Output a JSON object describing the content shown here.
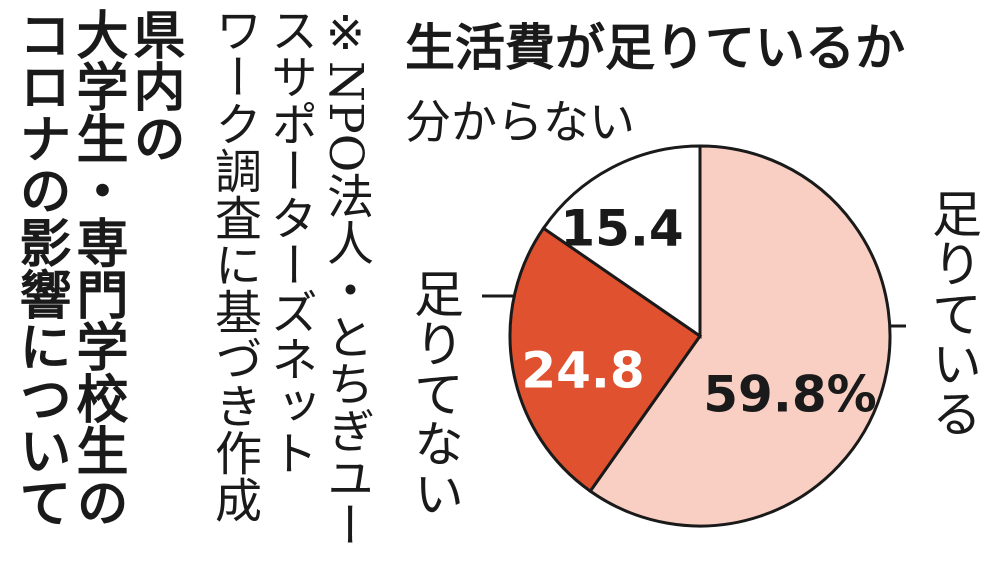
{
  "heading_lines": [
    "県内の",
    "大学生・専門学校生の",
    "コロナの影響について"
  ],
  "note_lines": [
    "※NPO法人・とちぎユー",
    "スサポーターズネット",
    "ワーク調査に基づき作成"
  ],
  "chart_data": {
    "type": "pie",
    "title": "生活費が足りているか",
    "categories": [
      "足りている",
      "足りてない",
      "分からない"
    ],
    "values": [
      59.8,
      24.8,
      15.4
    ],
    "value_labels": [
      "59.8%",
      "24.8",
      "15.4"
    ],
    "colors": [
      "#f8cfc2",
      "#e0522f",
      "#ffffff"
    ]
  }
}
